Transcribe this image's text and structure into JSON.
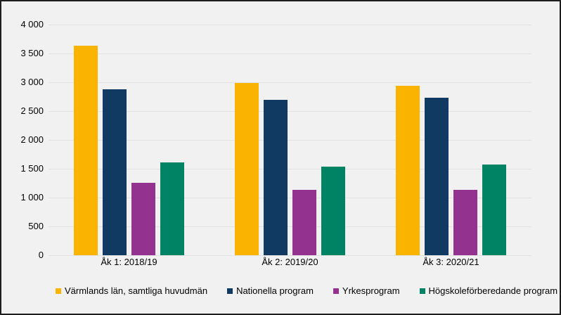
{
  "chart_data": {
    "type": "bar",
    "title": "",
    "categories": [
      "Åk 1: 2018/19",
      "Åk 2: 2019/20",
      "Åk 3: 2020/21"
    ],
    "series": [
      {
        "name": "Värmlands län, samtliga huvudmän",
        "color": "#FAB400",
        "values": [
          3640,
          2990,
          2940
        ]
      },
      {
        "name": "Nationella program",
        "color": "#113A63",
        "values": [
          2880,
          2690,
          2730
        ]
      },
      {
        "name": "Yrkesprogram",
        "color": "#93338F",
        "values": [
          1250,
          1140,
          1130
        ]
      },
      {
        "name": "Högskoleförberedande program",
        "color": "#008265",
        "values": [
          1610,
          1540,
          1570
        ]
      }
    ],
    "ylim": [
      0,
      4000
    ],
    "ytick_step": 500,
    "ytick_labels": [
      "0",
      "500",
      "1 000",
      "1 500",
      "2 000",
      "2 500",
      "3 000",
      "3 500",
      "4 000"
    ],
    "xlabel": "",
    "ylabel": "",
    "grid": true,
    "legend_position": "bottom-left"
  },
  "colors": {
    "background": "#F1F1F1",
    "gridline": "#E2E2E2",
    "border": "#1E1E1E",
    "text": "#000000"
  }
}
